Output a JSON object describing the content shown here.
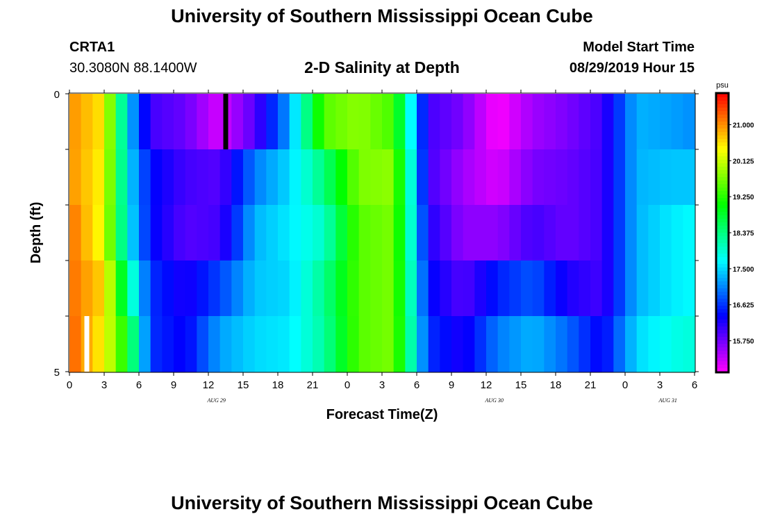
{
  "header": {
    "title": "University of Southern Mississippi Ocean Cube",
    "station_name": "CRTA1",
    "station_coords": "30.3080N 88.1400W",
    "chart_subtitle": "2-D Salinity at Depth",
    "model_start_label": "Model Start Time",
    "model_start_value": "08/29/2019 Hour 15"
  },
  "footer": {
    "title": "University of Southern Mississippi Ocean Cube"
  },
  "chart_data": {
    "type": "heatmap",
    "title": "2-D Salinity at Depth",
    "xlabel": "Forecast Time(Z)",
    "ylabel": "Depth (ft)",
    "ylim": [
      0,
      5
    ],
    "y_ticks": [
      "0",
      "5"
    ],
    "x_tick_labels": [
      "0",
      "3",
      "6",
      "9",
      "12",
      "15",
      "18",
      "21",
      "0",
      "3",
      "6",
      "9",
      "12",
      "15",
      "18",
      "21",
      "0",
      "3",
      "6"
    ],
    "date_labels": [
      "AUG 29",
      "AUG 30",
      "AUG 31"
    ],
    "colorbar": {
      "unit": "psu",
      "ticks": [
        "21.000",
        "20.125",
        "19.250",
        "18.375",
        "17.500",
        "16.625",
        "15.750"
      ],
      "range": [
        15.0,
        21.75
      ]
    },
    "hours": 54,
    "depth_layers": 5,
    "layer_anchor_hours": [
      0,
      3,
      5,
      7,
      10,
      13,
      16,
      19,
      22,
      25,
      28,
      31,
      34,
      37,
      40,
      43,
      46,
      49,
      52,
      54
    ],
    "layers": [
      [
        21.0,
        20.5,
        17.5,
        16.0,
        15.8,
        15.2,
        15.9,
        17.2,
        19.5,
        19.8,
        19.4,
        16.0,
        15.7,
        15.0,
        15.5,
        15.7,
        16.0,
        17.3,
        17.2,
        17.1
      ],
      [
        21.0,
        20.4,
        17.6,
        16.4,
        16.0,
        15.9,
        17.0,
        17.5,
        18.4,
        19.7,
        19.8,
        16.0,
        15.5,
        15.2,
        15.7,
        15.8,
        16.0,
        17.3,
        17.4,
        17.4
      ],
      [
        21.2,
        20.3,
        17.7,
        16.4,
        15.9,
        16.0,
        17.3,
        17.6,
        18.0,
        19.5,
        19.7,
        16.2,
        15.6,
        15.6,
        16.0,
        15.8,
        16.0,
        17.3,
        17.6,
        17.7
      ],
      [
        21.2,
        20.6,
        18.3,
        16.6,
        16.2,
        16.7,
        17.4,
        17.5,
        18.3,
        19.5,
        19.7,
        16.4,
        15.9,
        16.5,
        16.8,
        16.2,
        16.0,
        17.3,
        17.6,
        17.7
      ],
      [
        21.3,
        20.4,
        19.0,
        16.6,
        16.3,
        17.2,
        17.5,
        17.6,
        18.2,
        19.5,
        19.7,
        16.6,
        16.2,
        17.0,
        17.3,
        16.9,
        16.3,
        17.5,
        17.8,
        17.9
      ]
    ],
    "markers": [
      {
        "name": "current-time-marker",
        "hour": 13.5,
        "layer": 0,
        "color": "#000000"
      },
      {
        "name": "observation-marker",
        "hour": 1.5,
        "layer": 4,
        "color": "#ffffff"
      }
    ]
  }
}
